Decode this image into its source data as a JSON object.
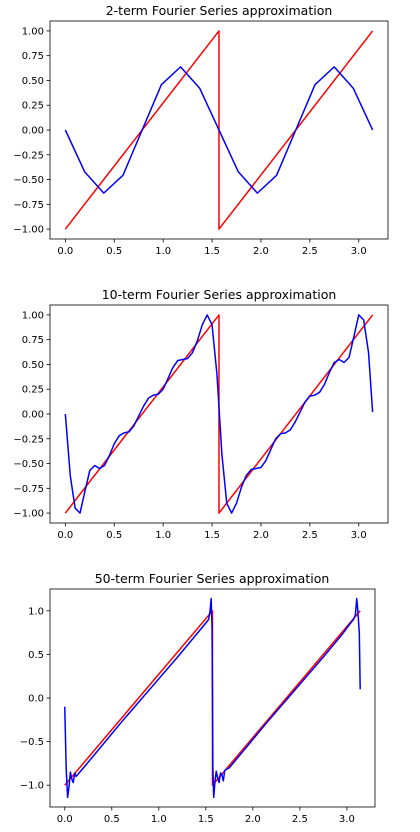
{
  "chart_data": [
    {
      "type": "line",
      "title": "2-term Fourier Series approximation",
      "n_terms": 2,
      "xlim": [
        -0.157,
        3.299
      ],
      "ylim": [
        -1.1,
        1.1
      ],
      "xticks": [
        0.0,
        0.5,
        1.0,
        1.5,
        2.0,
        2.5,
        3.0
      ],
      "xtick_labels": [
        "0.0",
        "0.5",
        "1.0",
        "1.5",
        "2.0",
        "2.5",
        "3.0"
      ],
      "yticks": [
        1.0,
        0.75,
        0.5,
        0.25,
        0.0,
        -0.25,
        -0.5,
        -0.75,
        -1.0
      ],
      "ytick_labels": [
        "1.00",
        "0.75",
        "0.50",
        "0.25",
        "0.00",
        "−0.25",
        "−0.50",
        "−0.75",
        "−1.00"
      ],
      "series": [
        {
          "color": "#ff0000",
          "x": [
            0.0,
            1.5708,
            1.5708,
            3.1416
          ],
          "y": [
            -1.0,
            1.0,
            -1.0,
            1.0
          ]
        },
        {
          "color": "#0000ff",
          "x": [
            0.0,
            0.1963,
            0.3927,
            0.589,
            0.7854,
            0.9817,
            1.1781,
            1.3744,
            1.5708,
            1.7671,
            1.9635,
            2.1598,
            2.3562,
            2.5525,
            2.7489,
            2.9452,
            3.1416
          ],
          "y": [
            0.0,
            -0.42,
            -0.637,
            -0.457,
            0.0,
            0.457,
            0.637,
            0.42,
            0.0,
            -0.42,
            -0.637,
            -0.457,
            0.0,
            0.457,
            0.637,
            0.42,
            0.0
          ]
        }
      ]
    },
    {
      "type": "line",
      "title": "10-term Fourier Series approximation",
      "n_terms": 10,
      "xlim": [
        -0.157,
        3.299
      ],
      "ylim": [
        -1.1,
        1.1
      ],
      "xticks": [
        0.0,
        0.5,
        1.0,
        1.5,
        2.0,
        2.5,
        3.0
      ],
      "xtick_labels": [
        "0.0",
        "0.5",
        "1.0",
        "1.5",
        "2.0",
        "2.5",
        "3.0"
      ],
      "yticks": [
        1.0,
        0.75,
        0.5,
        0.25,
        0.0,
        -0.25,
        -0.5,
        -0.75,
        -1.0
      ],
      "ytick_labels": [
        "1.00",
        "0.75",
        "0.50",
        "0.25",
        "0.00",
        "−0.25",
        "−0.50",
        "−0.75",
        "−1.00"
      ],
      "series": [
        {
          "color": "#ff0000",
          "x": [
            0.0,
            1.5708,
            1.5708,
            3.1416
          ],
          "y": [
            -1.0,
            1.0,
            -1.0,
            1.0
          ]
        },
        {
          "color": "#0000ff",
          "x": [
            0.0,
            0.05,
            0.1,
            0.15,
            0.2,
            0.25,
            0.3,
            0.35,
            0.4,
            0.45,
            0.5,
            0.55,
            0.6,
            0.65,
            0.7,
            0.75,
            0.8,
            0.85,
            0.9,
            0.95,
            1.0,
            1.05,
            1.1,
            1.15,
            1.2,
            1.25,
            1.3,
            1.35,
            1.4,
            1.45,
            1.5,
            1.55,
            1.6,
            1.65,
            1.7,
            1.75,
            1.8,
            1.85,
            1.9,
            1.95,
            2.0,
            2.05,
            2.1,
            2.15,
            2.2,
            2.25,
            2.3,
            2.35,
            2.4,
            2.45,
            2.5,
            2.55,
            2.6,
            2.65,
            2.7,
            2.75,
            2.8,
            2.85,
            2.9,
            2.95,
            3.0,
            3.05,
            3.1,
            3.1416
          ],
          "y": [
            0.0,
            -0.62,
            -0.95,
            -1.0,
            -0.78,
            -0.57,
            -0.52,
            -0.55,
            -0.52,
            -0.42,
            -0.3,
            -0.22,
            -0.19,
            -0.18,
            -0.12,
            -0.02,
            0.08,
            0.16,
            0.19,
            0.2,
            0.25,
            0.36,
            0.47,
            0.54,
            0.55,
            0.56,
            0.62,
            0.74,
            0.9,
            1.0,
            0.9,
            0.4,
            -0.4,
            -0.9,
            -1.0,
            -0.9,
            -0.74,
            -0.62,
            -0.56,
            -0.55,
            -0.54,
            -0.47,
            -0.36,
            -0.25,
            -0.2,
            -0.19,
            -0.16,
            -0.08,
            0.02,
            0.12,
            0.18,
            0.19,
            0.22,
            0.3,
            0.42,
            0.52,
            0.55,
            0.52,
            0.57,
            0.78,
            1.0,
            0.95,
            0.62,
            0.02
          ]
        }
      ]
    },
    {
      "type": "line",
      "title": "50-term Fourier Series approximation",
      "n_terms": 50,
      "xlim": [
        -0.157,
        3.299
      ],
      "ylim": [
        -1.25,
        1.25
      ],
      "xticks": [
        0.0,
        0.5,
        1.0,
        1.5,
        2.0,
        2.5,
        3.0
      ],
      "xtick_labels": [
        "0.0",
        "0.5",
        "1.0",
        "1.5",
        "2.0",
        "2.5",
        "3.0"
      ],
      "yticks": [
        1.0,
        0.5,
        0.0,
        -0.5,
        -1.0
      ],
      "ytick_labels": [
        "1.0",
        "0.5",
        "0.0",
        "−0.5",
        "−1.0"
      ],
      "series": [
        {
          "color": "#ff0000",
          "x": [
            0.0,
            1.5708,
            1.5708,
            3.1416
          ],
          "y": [
            -1.0,
            1.0,
            -1.0,
            1.0
          ]
        },
        {
          "color": "#0000ff",
          "x": [
            0.0,
            0.015,
            0.03,
            0.045,
            0.06,
            0.075,
            0.09,
            0.105,
            0.12,
            0.2,
            0.4,
            0.6,
            0.8,
            1.0,
            1.2,
            1.4,
            1.5,
            1.53,
            1.545,
            1.557,
            1.566,
            1.5708,
            1.575,
            1.584,
            1.596,
            1.611,
            1.626,
            1.641,
            1.656,
            1.671,
            1.686,
            1.701,
            1.75,
            1.95,
            2.15,
            2.35,
            2.55,
            2.75,
            2.95,
            3.04,
            3.07,
            3.09,
            3.105,
            3.115,
            3.125,
            3.132,
            3.1416
          ],
          "y": [
            -0.1,
            -0.8,
            -1.14,
            -1.02,
            -0.85,
            -0.93,
            -0.97,
            -0.86,
            -0.9,
            -0.8,
            -0.54,
            -0.28,
            -0.03,
            0.22,
            0.47,
            0.73,
            0.86,
            0.9,
            1.0,
            1.14,
            0.8,
            0.0,
            -0.8,
            -1.14,
            -0.97,
            -0.84,
            -0.92,
            -0.97,
            -0.86,
            -0.88,
            -0.95,
            -0.83,
            -0.8,
            -0.54,
            -0.28,
            -0.03,
            0.22,
            0.47,
            0.73,
            0.86,
            0.9,
            0.95,
            1.14,
            1.02,
            0.86,
            0.75,
            0.1
          ]
        }
      ]
    }
  ]
}
